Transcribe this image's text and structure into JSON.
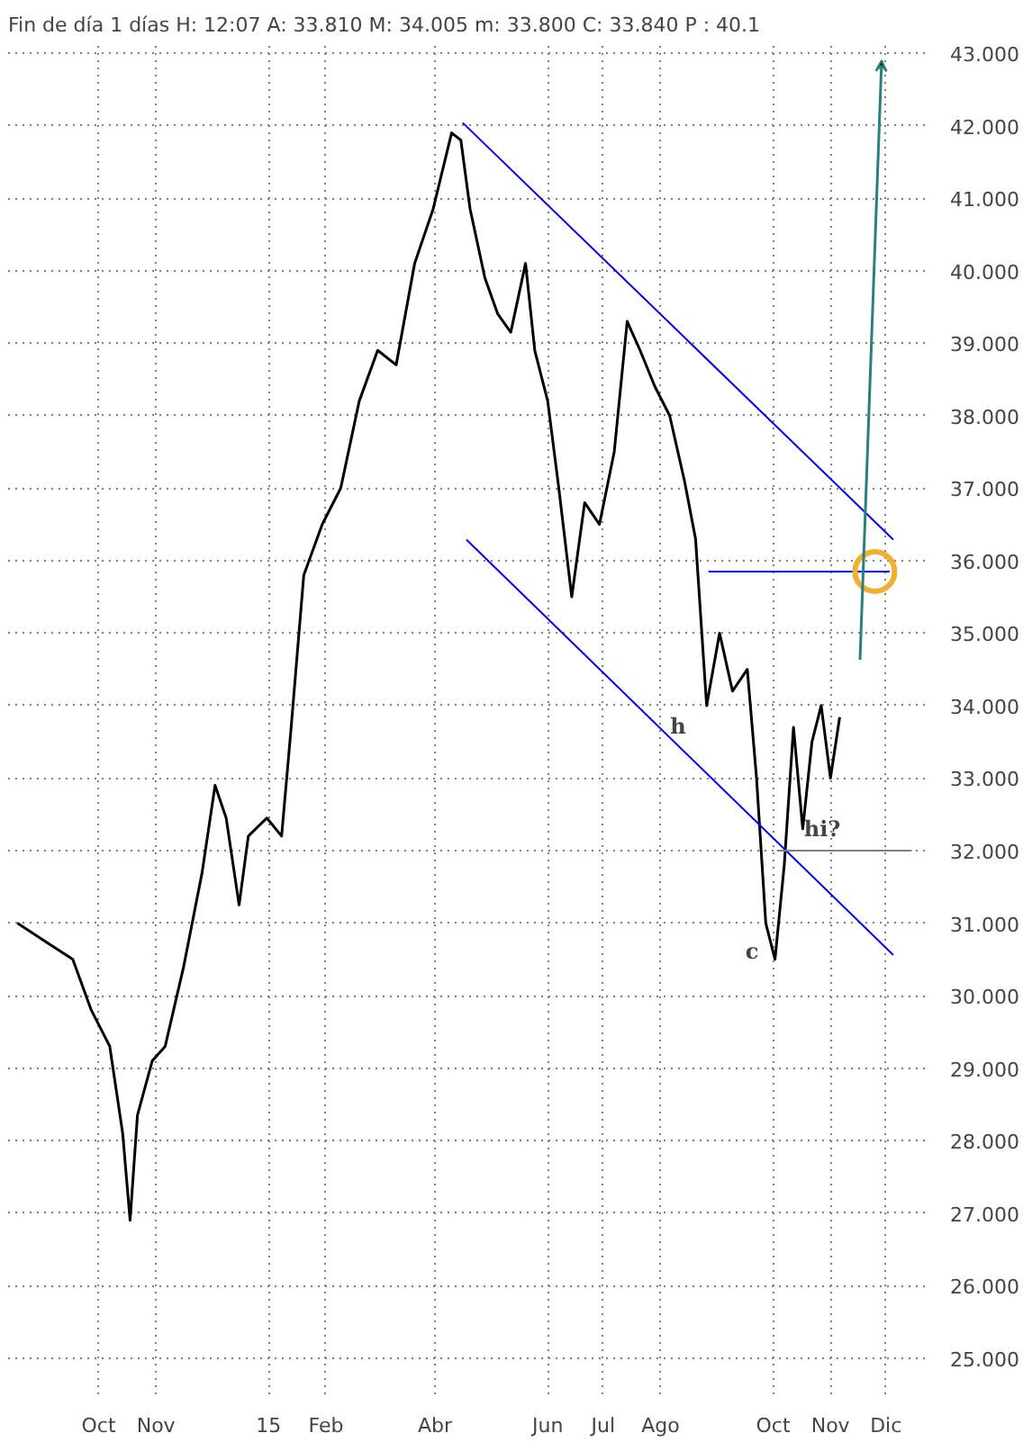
{
  "chart_data": {
    "type": "line",
    "title": "Fin de día 1 días  H: 12:07  A: 33.810  M: 34.005  m: 33.800  C: 33.840  P : 40.1",
    "xlim": [
      "2014-08-13",
      "2015-12-25"
    ],
    "xticks": [
      {
        "value": "2014-10-01",
        "label": "Oct"
      },
      {
        "value": "2014-11-01",
        "label": "Nov"
      },
      {
        "value": "2015-01-01",
        "label": "15"
      },
      {
        "value": "2015-02-01",
        "label": "Feb"
      },
      {
        "value": "2015-04-01",
        "label": "Abr"
      },
      {
        "value": "2015-06-01",
        "label": "Jun"
      },
      {
        "value": "2015-07-01",
        "label": "Jul"
      },
      {
        "value": "2015-08-01",
        "label": "Ago"
      },
      {
        "value": "2015-10-01",
        "label": "Oct"
      },
      {
        "value": "2015-11-01",
        "label": "Nov"
      },
      {
        "value": "2015-12-01",
        "label": "Dic"
      }
    ],
    "ylim": [
      24.5,
      43.1
    ],
    "yticks": [
      {
        "value": 25,
        "label": "25.000"
      },
      {
        "value": 26,
        "label": "26.000"
      },
      {
        "value": 27,
        "label": "27.000"
      },
      {
        "value": 28,
        "label": "28.000"
      },
      {
        "value": 29,
        "label": "29.000"
      },
      {
        "value": 30,
        "label": "30.000"
      },
      {
        "value": 31,
        "label": "31.000"
      },
      {
        "value": 32,
        "label": "32.000"
      },
      {
        "value": 33,
        "label": "33.000"
      },
      {
        "value": 34,
        "label": "34.000"
      },
      {
        "value": 35,
        "label": "35.000"
      },
      {
        "value": 36,
        "label": "36.000"
      },
      {
        "value": 37,
        "label": "37.000"
      },
      {
        "value": 38,
        "label": "38.000"
      },
      {
        "value": 39,
        "label": "39.000"
      },
      {
        "value": 40,
        "label": "40.000"
      },
      {
        "value": 41,
        "label": "41.000"
      },
      {
        "value": 42,
        "label": "42.000"
      },
      {
        "value": 43,
        "label": "43.000"
      }
    ],
    "grid": true,
    "line_style": "solid",
    "series": [
      {
        "color": "#000000",
        "x": [
          "2014-08-18",
          "2014-09-02",
          "2014-09-17",
          "2014-09-27",
          "2014-10-07",
          "2014-10-14",
          "2014-10-18",
          "2014-10-22",
          "2014-10-30",
          "2014-11-06",
          "2014-11-16",
          "2014-11-26",
          "2014-12-03",
          "2014-12-09",
          "2014-12-16",
          "2014-12-21",
          "2014-12-31",
          "2015-01-08",
          "2015-01-13",
          "2015-01-20",
          "2015-01-30",
          "2015-02-09",
          "2015-02-19",
          "2015-03-01",
          "2015-03-11",
          "2015-03-21",
          "2015-03-31",
          "2015-04-10",
          "2015-04-15",
          "2015-04-20",
          "2015-04-28",
          "2015-05-05",
          "2015-05-12",
          "2015-05-20",
          "2015-05-25",
          "2015-06-01",
          "2015-06-07",
          "2015-06-14",
          "2015-06-21",
          "2015-06-29",
          "2015-07-07",
          "2015-07-14",
          "2015-07-21",
          "2015-07-29",
          "2015-08-06",
          "2015-08-14",
          "2015-08-20",
          "2015-08-26",
          "2015-09-02",
          "2015-09-09",
          "2015-09-17",
          "2015-09-22",
          "2015-09-27",
          "2015-10-02",
          "2015-10-07",
          "2015-10-12",
          "2015-10-17",
          "2015-10-22",
          "2015-10-27",
          "2015-11-01",
          "2015-11-06"
        ],
        "values": [
          31.0,
          30.75,
          30.5,
          29.8,
          29.3,
          28.1,
          26.9,
          28.35,
          29.1,
          29.3,
          30.4,
          31.7,
          32.9,
          32.45,
          31.25,
          32.2,
          32.45,
          32.2,
          33.65,
          35.8,
          36.5,
          37.0,
          38.2,
          38.9,
          38.7,
          40.1,
          40.85,
          41.9,
          41.8,
          40.85,
          39.9,
          39.4,
          39.15,
          40.1,
          38.9,
          38.2,
          37.0,
          35.5,
          36.8,
          36.5,
          37.5,
          39.3,
          38.9,
          38.4,
          38.0,
          37.1,
          36.3,
          34.0,
          35.0,
          34.2,
          34.5,
          33.0,
          31.0,
          30.5,
          31.8,
          33.7,
          32.3,
          33.5,
          34.0,
          33.0,
          33.84
        ]
      },
      {
        "color": "#0000ff",
        "x": [
          "2015-04-16",
          "2015-12-05"
        ],
        "values": [
          42.04,
          36.29
        ]
      },
      {
        "color": "#0000ff",
        "x": [
          "2015-04-18",
          "2015-12-05"
        ],
        "values": [
          36.29,
          30.56
        ]
      },
      {
        "color": "#0000ff",
        "x": [
          "2015-08-27",
          "2015-12-03"
        ],
        "values": [
          35.85,
          35.85
        ]
      },
      {
        "color": "#808080",
        "x": [
          "2015-10-03",
          "2015-12-15"
        ],
        "values": [
          32.0,
          32.0
        ]
      },
      {
        "type": "scatter",
        "marker": "circle",
        "color": "#f0b030",
        "x": [
          "2015-11-25"
        ],
        "values": [
          35.85
        ]
      }
    ],
    "annotations": [
      "h",
      "c",
      "hi?"
    ]
  }
}
